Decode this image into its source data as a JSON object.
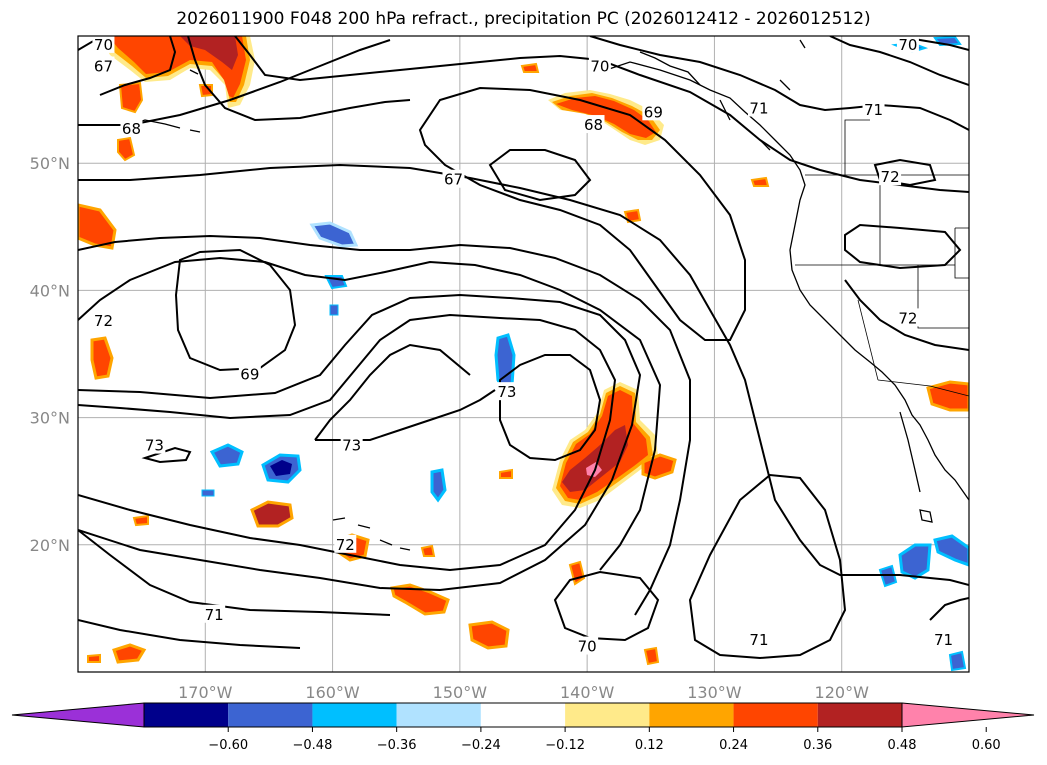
{
  "title": "2026011900 F048 200 hPa refract., precipitation PC (2026012412 - 2026012512)",
  "map": {
    "lat_range": [
      10,
      60
    ],
    "lon_range": [
      -180,
      -110
    ],
    "lat_ticks": [
      {
        "value": 20,
        "label": "20°N"
      },
      {
        "value": 30,
        "label": "30°N"
      },
      {
        "value": 40,
        "label": "40°N"
      },
      {
        "value": 50,
        "label": "50°N"
      }
    ],
    "lon_ticks": [
      {
        "value": -170,
        "label": "170°W"
      },
      {
        "value": -160,
        "label": "160°W"
      },
      {
        "value": -150,
        "label": "150°W"
      },
      {
        "value": -140,
        "label": "140°W"
      },
      {
        "value": -130,
        "label": "130°W"
      },
      {
        "value": -120,
        "label": "120°W"
      }
    ],
    "contour_labels": [
      {
        "text": "67",
        "lon": -178,
        "lat": 57.6
      },
      {
        "text": "68",
        "lon": -175.8,
        "lat": 52.7
      },
      {
        "text": "70",
        "lon": -178,
        "lat": 59.3
      },
      {
        "text": "70",
        "lon": -139,
        "lat": 57.6
      },
      {
        "text": "69",
        "lon": -134.8,
        "lat": 54.0
      },
      {
        "text": "68",
        "lon": -139.5,
        "lat": 53.0
      },
      {
        "text": "67",
        "lon": -150.5,
        "lat": 48.7
      },
      {
        "text": "71",
        "lon": -126.5,
        "lat": 54.3
      },
      {
        "text": "71",
        "lon": -117.5,
        "lat": 54.2
      },
      {
        "text": "70",
        "lon": -114.8,
        "lat": 59.3
      },
      {
        "text": "72",
        "lon": -116.2,
        "lat": 48.9
      },
      {
        "text": "72",
        "lon": -114.8,
        "lat": 37.8
      },
      {
        "text": "72",
        "lon": -178,
        "lat": 37.6
      },
      {
        "text": "69",
        "lon": -166.5,
        "lat": 33.4
      },
      {
        "text": "73",
        "lon": -174,
        "lat": 27.8
      },
      {
        "text": "73",
        "lon": -158.5,
        "lat": 27.8
      },
      {
        "text": "73",
        "lon": -146.3,
        "lat": 32.0
      },
      {
        "text": "72",
        "lon": -159,
        "lat": 20.0
      },
      {
        "text": "71",
        "lon": -169.3,
        "lat": 14.5
      },
      {
        "text": "70",
        "lon": -140,
        "lat": 12.0
      },
      {
        "text": "71",
        "lon": -126.5,
        "lat": 12.5
      },
      {
        "text": "71",
        "lon": -112,
        "lat": 12.5
      }
    ]
  },
  "colorbar": {
    "labels": [
      "−0.60",
      "−0.48",
      "−0.36",
      "−0.24",
      "−0.12",
      "0.12",
      "0.24",
      "0.36",
      "0.48",
      "0.60"
    ],
    "bins": [
      {
        "color": "#9b30d8",
        "kind": "extend-left"
      },
      {
        "color": "#00008b"
      },
      {
        "color": "#3c64d2"
      },
      {
        "color": "#00bfff"
      },
      {
        "color": "#b0e2ff"
      },
      {
        "color": "#ffffff"
      },
      {
        "color": "#ffea8a"
      },
      {
        "color": "#ffa500"
      },
      {
        "color": "#ff4500"
      },
      {
        "color": "#b22222"
      },
      {
        "color": "#ff82ab",
        "kind": "extend-right"
      }
    ]
  },
  "colors": {
    "pos_outer": "#ffea8a",
    "pos_mid": "#ffa500",
    "pos_main": "#ff4500",
    "pos_strong": "#b22222",
    "pos_max": "#ff82ab",
    "neg_outer": "#b0e2ff",
    "neg_mid": "#00bfff",
    "neg_main": "#3c64d2",
    "neg_strong": "#00008b"
  }
}
